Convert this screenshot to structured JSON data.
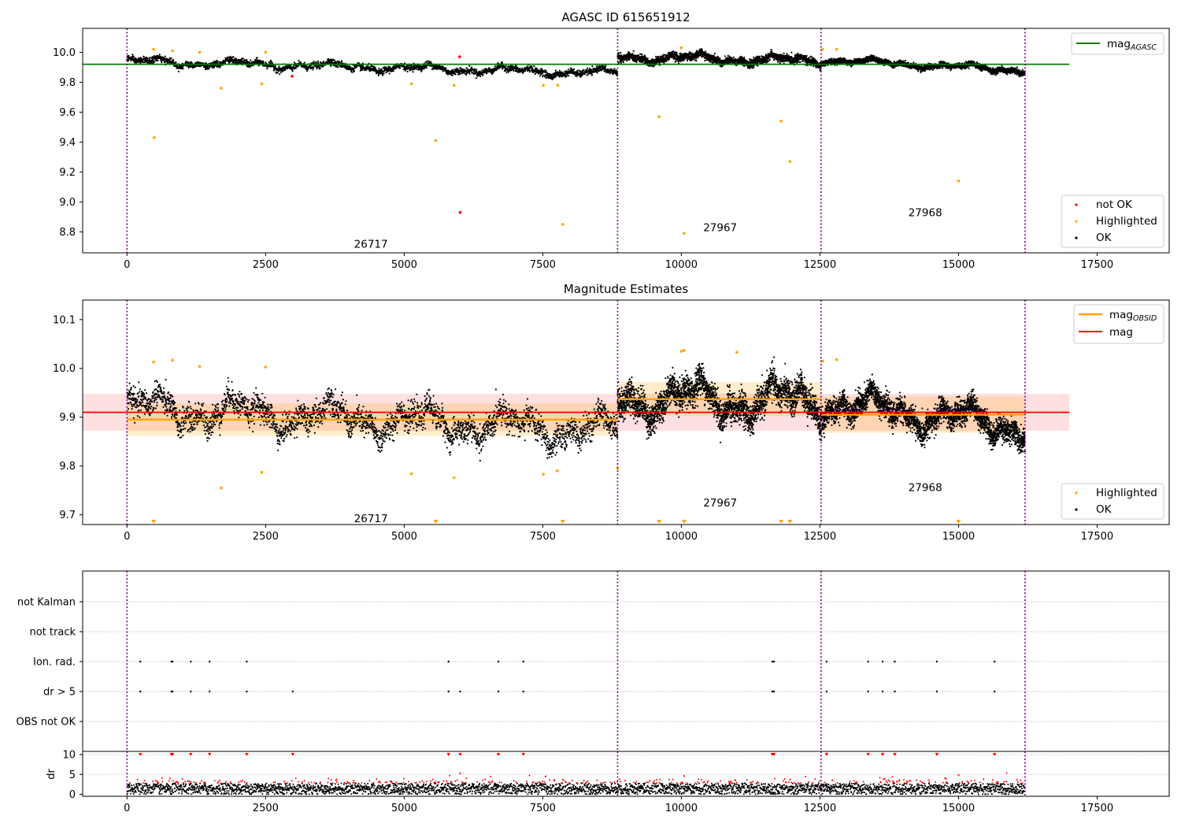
{
  "colors": {
    "ok": "#000000",
    "highlighted": "#ffa500",
    "not_ok": "#ff0000",
    "agasc_line": "#008000",
    "mag_line": "#ff0000",
    "obsid_line": "#ffa500",
    "obs_boundary": "#800080",
    "grid": "#b0b0b0"
  },
  "chart_data": [
    {
      "id": "agasc-panel",
      "type": "scatter",
      "title": "AGASC ID 615651912",
      "xlim": [
        -800,
        18800
      ],
      "ylim": [
        8.66,
        10.16
      ],
      "xticks": [
        0,
        2500,
        5000,
        7500,
        10000,
        12500,
        15000,
        17500
      ],
      "yticks": [
        8.8,
        9.0,
        9.2,
        9.4,
        9.6,
        9.8,
        10.0
      ],
      "ytick_labels": [
        "8.8",
        "9.0",
        "9.2",
        "9.4",
        "9.6",
        "9.8",
        "10.0"
      ],
      "obs_boundaries": [
        0,
        8850,
        12520,
        16200
      ],
      "obsid_labels": [
        {
          "text": "26717",
          "x": 4400,
          "y": 8.72
        },
        {
          "text": "27967",
          "x": 10700,
          "y": 8.83
        },
        {
          "text": "27968",
          "x": 14400,
          "y": 8.93
        }
      ],
      "lines": [
        {
          "name": "mag_AGASC",
          "x": [
            -800,
            17000
          ],
          "y": [
            9.92,
            9.92
          ],
          "color": "#008000"
        }
      ],
      "ok_segments": [
        {
          "x0": 0,
          "x1": 8850,
          "mean_start": 9.94,
          "mean_end": 9.86,
          "spread": 0.03
        },
        {
          "x0": 8850,
          "x1": 12520,
          "mean_start": 9.97,
          "mean_end": 9.94,
          "spread": 0.035
        },
        {
          "x0": 12520,
          "x1": 16200,
          "mean_start": 9.95,
          "mean_end": 9.88,
          "spread": 0.025
        }
      ],
      "highlighted": [
        [
          480,
          10.02
        ],
        [
          490,
          9.43
        ],
        [
          820,
          10.01
        ],
        [
          1310,
          10.0
        ],
        [
          1700,
          9.76
        ],
        [
          2430,
          9.79
        ],
        [
          2500,
          10.0
        ],
        [
          5130,
          9.79
        ],
        [
          5570,
          9.41
        ],
        [
          5900,
          9.78
        ],
        [
          7510,
          9.78
        ],
        [
          7770,
          9.78
        ],
        [
          7860,
          8.85
        ],
        [
          9600,
          9.57
        ],
        [
          10000,
          10.03
        ],
        [
          10050,
          8.79
        ],
        [
          11800,
          9.54
        ],
        [
          11960,
          9.27
        ],
        [
          12550,
          10.02
        ],
        [
          12800,
          10.02
        ],
        [
          15000,
          9.14
        ]
      ],
      "not_ok": [
        [
          2980,
          9.84
        ],
        [
          6010,
          8.93
        ],
        [
          6000,
          9.97
        ]
      ],
      "legend": {
        "lines": [
          {
            "label": "mag",
            "sub": "AGASC"
          }
        ],
        "points": [
          {
            "label": "not OK",
            "key": "not_ok"
          },
          {
            "label": "Highlighted",
            "key": "highlighted"
          },
          {
            "label": "OK",
            "key": "ok"
          }
        ]
      }
    },
    {
      "id": "estimates-panel",
      "type": "scatter",
      "title": "Magnitude Estimates",
      "xlim": [
        -800,
        18800
      ],
      "ylim": [
        9.68,
        10.14
      ],
      "xticks": [
        0,
        2500,
        5000,
        7500,
        10000,
        12500,
        15000,
        17500
      ],
      "yticks": [
        9.7,
        9.8,
        9.9,
        10.0,
        10.1
      ],
      "ytick_labels": [
        "9.7",
        "9.8",
        "9.9",
        "10.0",
        "10.1"
      ],
      "obs_boundaries": [
        0,
        8850,
        12520,
        16200
      ],
      "obsid_labels": [
        {
          "text": "26717",
          "x": 4400,
          "y": 9.693
        },
        {
          "text": "27967",
          "x": 10700,
          "y": 9.725
        },
        {
          "text": "27968",
          "x": 14400,
          "y": 9.757
        }
      ],
      "mag": {
        "value": 9.91,
        "band": [
          9.872,
          9.948
        ],
        "x": [
          -800,
          17000
        ]
      },
      "mag_obsid": [
        {
          "x0": 0,
          "x1": 8850,
          "value": 9.895,
          "band": [
            9.862,
            9.928
          ]
        },
        {
          "x0": 8850,
          "x1": 12520,
          "value": 9.937,
          "band": [
            9.903,
            9.972
          ]
        },
        {
          "x0": 12520,
          "x1": 16200,
          "value": 9.905,
          "band": [
            9.868,
            9.942
          ]
        }
      ],
      "ok_segments": [
        {
          "x0": 0,
          "x1": 8850,
          "mean_start": 9.92,
          "mean_end": 9.87,
          "spread": 0.03
        },
        {
          "x0": 8850,
          "x1": 12520,
          "mean_start": 9.94,
          "mean_end": 9.93,
          "spread": 0.035
        },
        {
          "x0": 12520,
          "x1": 16200,
          "mean_start": 9.93,
          "mean_end": 9.88,
          "spread": 0.028
        }
      ],
      "highlighted": [
        [
          480,
          10.013
        ],
        [
          820,
          10.017
        ],
        [
          1310,
          10.004
        ],
        [
          1700,
          9.755
        ],
        [
          2430,
          9.787
        ],
        [
          2500,
          10.003
        ],
        [
          5130,
          9.784
        ],
        [
          5900,
          9.776
        ],
        [
          7510,
          9.783
        ],
        [
          7760,
          9.79
        ],
        [
          8850,
          9.795
        ],
        [
          10000,
          10.035
        ],
        [
          10050,
          10.037
        ],
        [
          11000,
          10.033
        ],
        [
          12550,
          10.015
        ],
        [
          12800,
          10.018
        ]
      ],
      "highlighted_offscale": [
        480,
        5570,
        7860,
        9600,
        10050,
        11800,
        11960,
        15000
      ],
      "legend": {
        "lines": [
          {
            "label": "mag",
            "sub": "OBSID",
            "key": "obsid"
          },
          {
            "label": "mag",
            "sub": "",
            "key": "mag"
          }
        ],
        "points": [
          {
            "label": "Highlighted",
            "key": "highlighted"
          },
          {
            "label": "OK",
            "key": "ok"
          }
        ]
      }
    },
    {
      "id": "flags-panel",
      "type": "scatter",
      "title": "",
      "xlim": [
        -800,
        18800
      ],
      "categories": [
        "not Kalman",
        "not track",
        "Ion. rad.",
        "dr > 5",
        "OBS not OK"
      ],
      "obs_boundaries": [
        0,
        8850,
        12520,
        16200
      ],
      "flags": {
        "Ion. rad.": [
          240,
          800,
          820,
          1150,
          1490,
          2160,
          5800,
          6700,
          7150,
          11640,
          11670,
          12620,
          13370,
          13630,
          13850,
          14610,
          15650
        ],
        "dr > 5": [
          240,
          800,
          820,
          1150,
          1490,
          2160,
          2990,
          5800,
          6010,
          6700,
          7150,
          11640,
          11670,
          12620,
          13370,
          13630,
          13850,
          14610,
          15650
        ]
      }
    },
    {
      "id": "dr-panel",
      "type": "scatter",
      "title": "",
      "ylabel": "dr",
      "xlim": [
        -800,
        18800
      ],
      "ylim": [
        -0.5,
        10.8
      ],
      "xticks": [
        0,
        2500,
        5000,
        7500,
        10000,
        12500,
        15000,
        17500
      ],
      "yticks": [
        0,
        5,
        10
      ],
      "ytick_labels": [
        "0",
        "5",
        "10"
      ],
      "obs_boundaries": [
        0,
        8850,
        12520,
        16200
      ],
      "dr_range": {
        "x0": 0,
        "x1": 16200,
        "mean": 1.5,
        "spread": 1.0
      },
      "clipped_at_10": [
        240,
        800,
        820,
        1150,
        1490,
        2160,
        2990,
        5800,
        6010,
        6700,
        7150,
        11640,
        11670,
        12620,
        13370,
        13630,
        13850,
        14610,
        15650
      ],
      "mid_outliers": [
        [
          6010,
          5.3
        ],
        [
          10050,
          4.6
        ],
        [
          15000,
          4.8
        ],
        [
          7550,
          4.5
        ]
      ]
    }
  ]
}
